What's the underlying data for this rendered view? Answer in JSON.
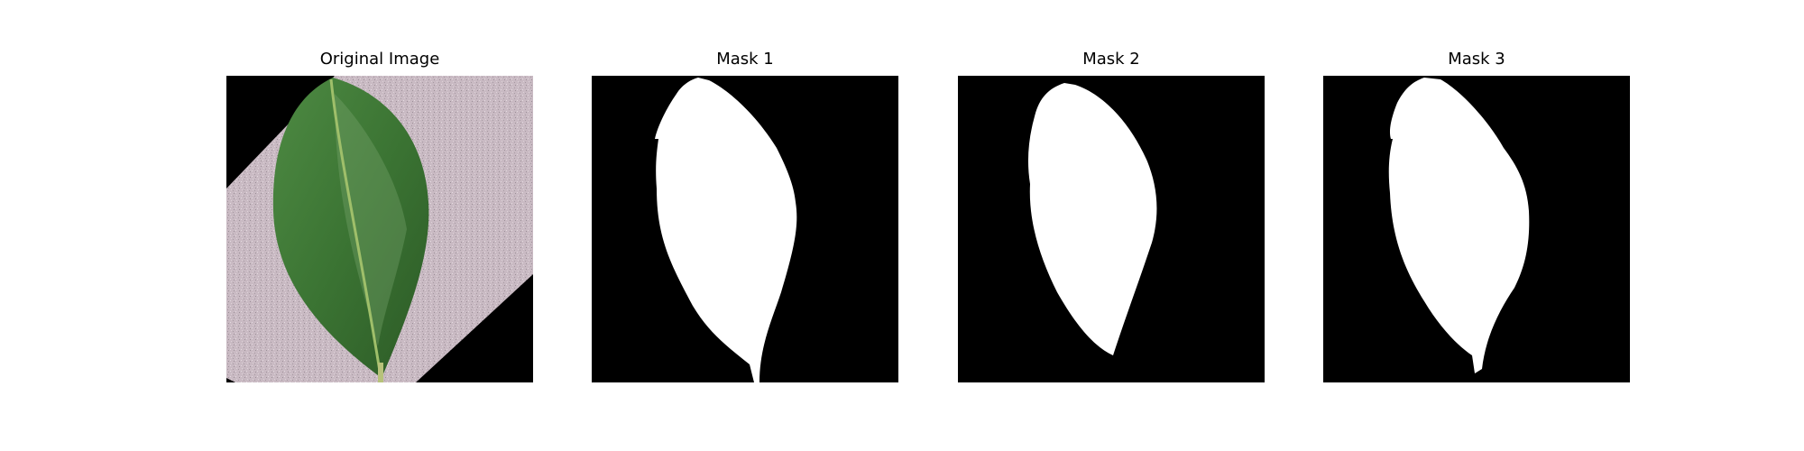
{
  "panels": [
    {
      "title": "Original Image"
    },
    {
      "title": "Mask 1"
    },
    {
      "title": "Mask 2"
    },
    {
      "title": "Mask 3"
    }
  ],
  "colors": {
    "background": "#ffffff",
    "mask_background": "#000000",
    "mask_foreground": "#ffffff",
    "leaf_green": "#3f7a35",
    "leaf_dark": "#274f22",
    "paper": "#c8b9c1"
  }
}
